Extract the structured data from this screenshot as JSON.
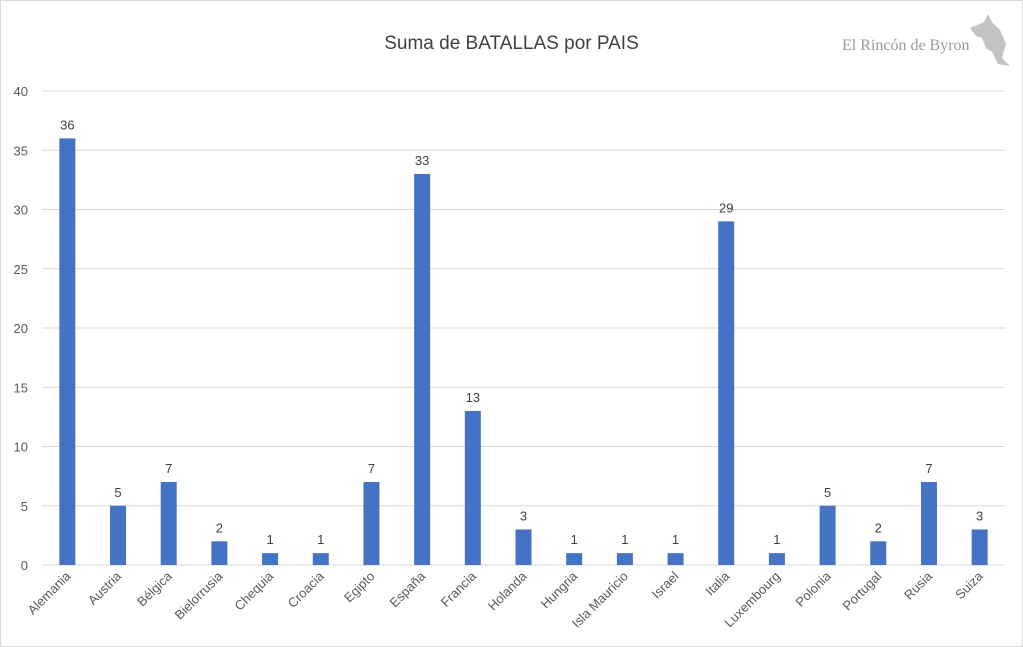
{
  "chart_data": {
    "type": "bar",
    "title": "Suma de BATALLAS por PAIS",
    "xlabel": "",
    "ylabel": "",
    "ylim": [
      0,
      40
    ],
    "yticks": [
      0,
      5,
      10,
      15,
      20,
      25,
      30,
      35,
      40
    ],
    "grid": true,
    "categories": [
      "Alemania",
      "Austria",
      "Bélgica",
      "Bielorrusia",
      "Chequia",
      "Croacia",
      "Egipto",
      "España",
      "Francia",
      "Holanda",
      "Hungria",
      "Isla Mauricio",
      "Israel",
      "Italia",
      "Luxembourg",
      "Polonia",
      "Portugal",
      "Rusia",
      "Suiza"
    ],
    "values": [
      36,
      5,
      7,
      2,
      1,
      1,
      7,
      33,
      13,
      3,
      1,
      1,
      1,
      29,
      1,
      5,
      2,
      7,
      3
    ],
    "bar_color": "#4472c4",
    "grid_color": "#d9d9d9"
  },
  "watermark": {
    "text": "El Rincón de Byron",
    "icon": "kangaroo-icon"
  }
}
